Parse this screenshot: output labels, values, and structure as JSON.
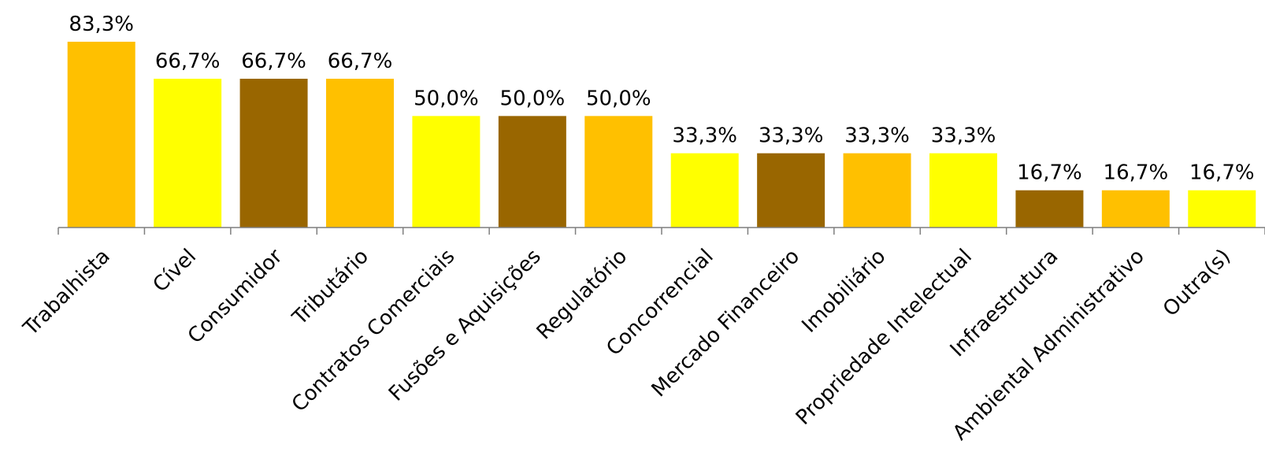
{
  "chart_data": {
    "type": "bar",
    "categories": [
      "Trabalhista",
      "Cível",
      "Consumidor",
      "Tributário",
      "Contratos Comerciais",
      "Fusões e Aquisições",
      "Regulatório",
      "Concorrencial",
      "Mercado Financeiro",
      "Imobiliário",
      "Propriedade Intelectual",
      "Infraestrutura",
      "Ambiental Administrativo",
      "Outra(s)"
    ],
    "values": [
      83.3,
      66.7,
      66.7,
      66.7,
      50.0,
      50.0,
      50.0,
      33.3,
      33.3,
      33.3,
      33.3,
      16.7,
      16.7,
      16.7
    ],
    "data_labels": [
      "83,3%",
      "66,7%",
      "66,7%",
      "66,7%",
      "50,0%",
      "50,0%",
      "50,0%",
      "33,3%",
      "33,3%",
      "33,3%",
      "33,3%",
      "16,7%",
      "16,7%",
      "16,7%"
    ],
    "bar_colors": [
      "#FFC000",
      "#FFFF00",
      "#996600",
      "#FFC000",
      "#FFFF00",
      "#996600",
      "#FFC000",
      "#FFFF00",
      "#996600",
      "#FFC000",
      "#FFFF00",
      "#996600",
      "#FFC000",
      "#FFFF00"
    ],
    "axis_color": "#7F7F7F",
    "title": "",
    "xlabel": "",
    "ylabel": "",
    "ylim": [
      0,
      100
    ],
    "grid": false,
    "legend": "none"
  }
}
